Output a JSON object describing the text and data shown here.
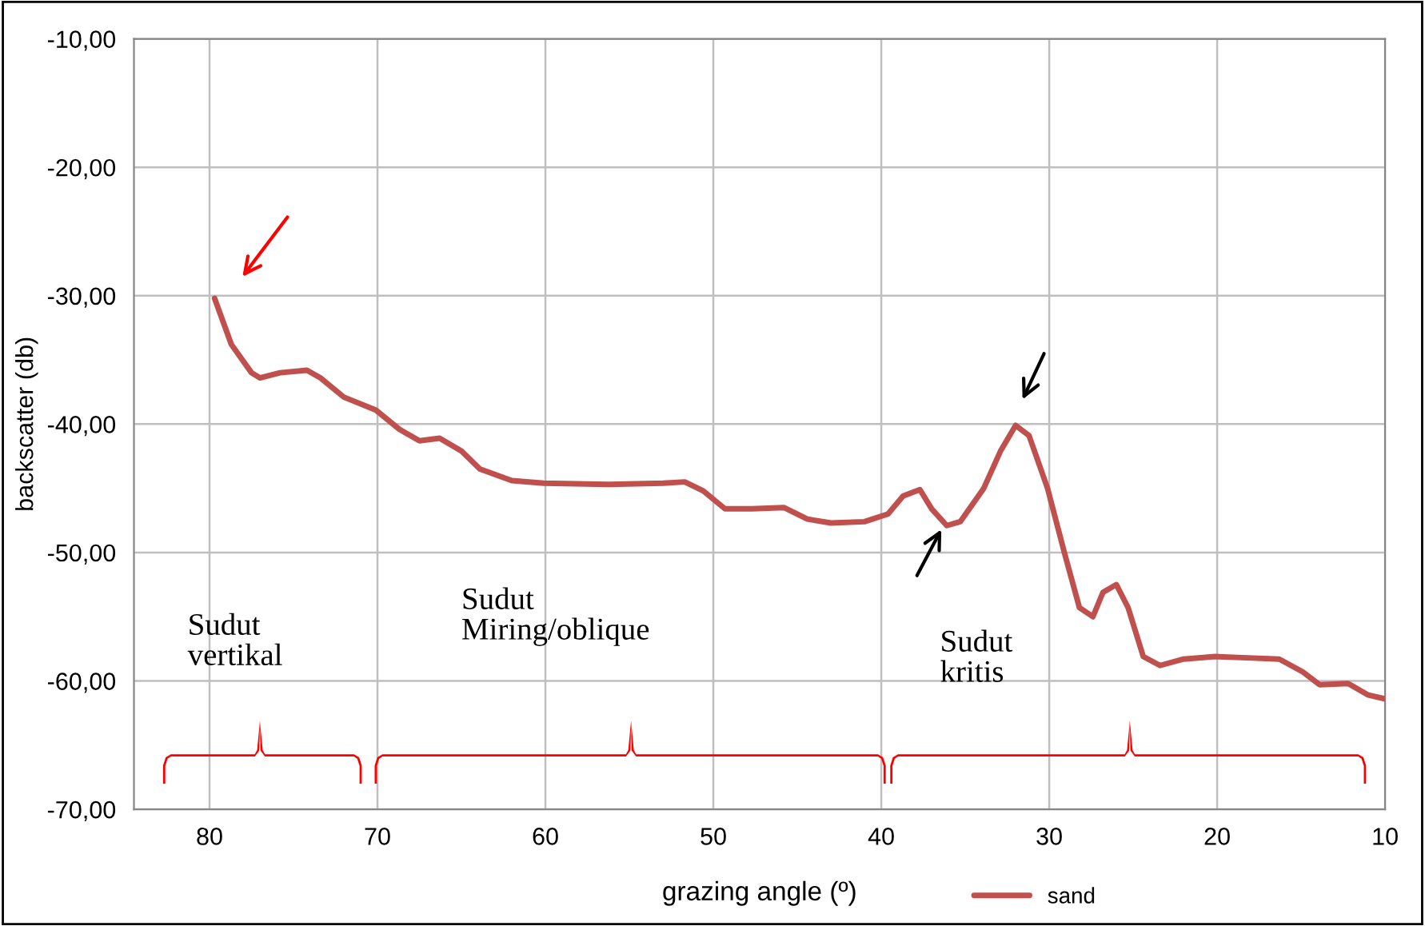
{
  "chart_data": {
    "type": "line",
    "xlabel": "grazing angle (º)",
    "ylabel": "backscatter (db)",
    "xlim": [
      84.5,
      10
    ],
    "xticks": [
      80,
      70,
      60,
      50,
      40,
      30,
      20,
      10
    ],
    "ylim": [
      -70,
      -10
    ],
    "yticks": [
      {
        "value": -70,
        "label": "-70,00"
      },
      {
        "value": -60,
        "label": "-60,00"
      },
      {
        "value": -50,
        "label": "-50,00"
      },
      {
        "value": -40,
        "label": "-40,00"
      },
      {
        "value": -30,
        "label": "-30,00"
      },
      {
        "value": -20,
        "label": "-20,00"
      },
      {
        "value": -10,
        "label": "-10,00"
      }
    ],
    "grid": true,
    "legend": "bottom",
    "marker": "none",
    "line_style": "solid",
    "annotations": [
      "Sudut\nvertikal",
      "Sudut\nMiring/oblique",
      "Sudut\nkritis"
    ],
    "series": [
      {
        "name": "sand",
        "color": "#c0504d",
        "x": [
          79.7,
          78.7,
          77.5,
          77.0,
          75.8,
          74.2,
          73.4,
          72.0,
          70.1,
          68.7,
          67.5,
          66.3,
          65.0,
          63.9,
          62.0,
          60.1,
          56.3,
          53.0,
          51.7,
          50.6,
          49.3,
          47.7,
          45.8,
          44.4,
          43.0,
          41.0,
          39.6,
          38.7,
          37.7,
          37.0,
          36.1,
          35.3,
          33.9,
          32.9,
          32.0,
          31.2,
          30.1,
          29.1,
          28.2,
          27.4,
          26.8,
          26.0,
          25.3,
          24.4,
          23.4,
          22.0,
          20.1,
          18.2,
          16.3,
          14.9,
          13.9,
          12.2,
          11.0,
          10.0
        ],
        "values": [
          -30.2,
          -33.8,
          -36.0,
          -36.4,
          -36.0,
          -35.8,
          -36.4,
          -37.9,
          -38.9,
          -40.4,
          -41.3,
          -41.1,
          -42.1,
          -43.5,
          -44.4,
          -44.6,
          -44.7,
          -44.6,
          -44.5,
          -45.2,
          -46.6,
          -46.6,
          -46.5,
          -47.4,
          -47.7,
          -47.6,
          -47.0,
          -45.6,
          -45.1,
          -46.6,
          -47.9,
          -47.6,
          -45.0,
          -42.1,
          -40.1,
          -40.9,
          -45.0,
          -50.0,
          -54.3,
          -55.0,
          -53.1,
          -52.5,
          -54.3,
          -58.1,
          -58.8,
          -58.3,
          -58.1,
          -58.2,
          -58.3,
          -59.3,
          -60.3,
          -60.2,
          -61.1,
          -61.4
        ]
      }
    ]
  }
}
